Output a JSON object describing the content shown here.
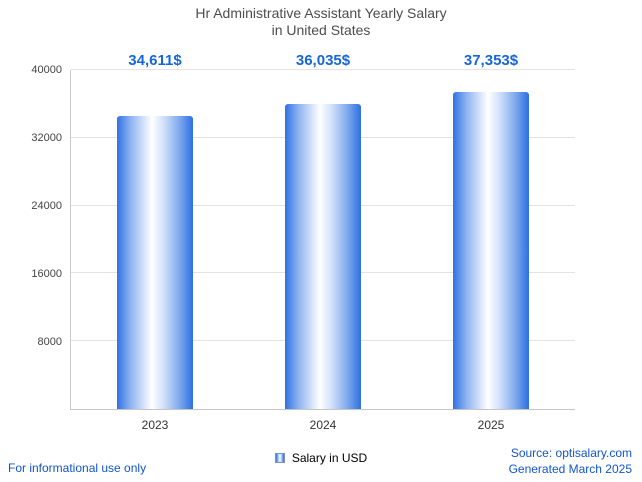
{
  "title": {
    "line1": "Hr Administrative Assistant Yearly Salary",
    "line2": "in United States"
  },
  "chart_data": {
    "type": "bar",
    "categories": [
      "2023",
      "2024",
      "2025"
    ],
    "values": [
      34611,
      36035,
      37353
    ],
    "value_labels": [
      "34,611$",
      "36,035$",
      "37,353$"
    ],
    "series": [
      {
        "name": "Salary in USD",
        "values": [
          34611,
          36035,
          37353
        ]
      }
    ],
    "title": "Hr Administrative Assistant Yearly Salary in United States",
    "xlabel": "",
    "ylabel": "",
    "ylim": [
      0,
      40000
    ],
    "yticks": [
      8000,
      16000,
      24000,
      32000,
      40000
    ],
    "grid": true,
    "legend_position": "bottom"
  },
  "legend": {
    "label": "Salary in USD"
  },
  "footer": {
    "disclaimer": "For informational use only",
    "source": "Source: optisalary.com",
    "generated": "Generated March 2025"
  },
  "colors": {
    "bar_edge": "#2e72e4",
    "bar_center": "#ffffff",
    "value_label": "#1666d8",
    "title_text": "#4d4d4d",
    "link_text": "#1155cc",
    "gridline": "#e3e3e3"
  }
}
